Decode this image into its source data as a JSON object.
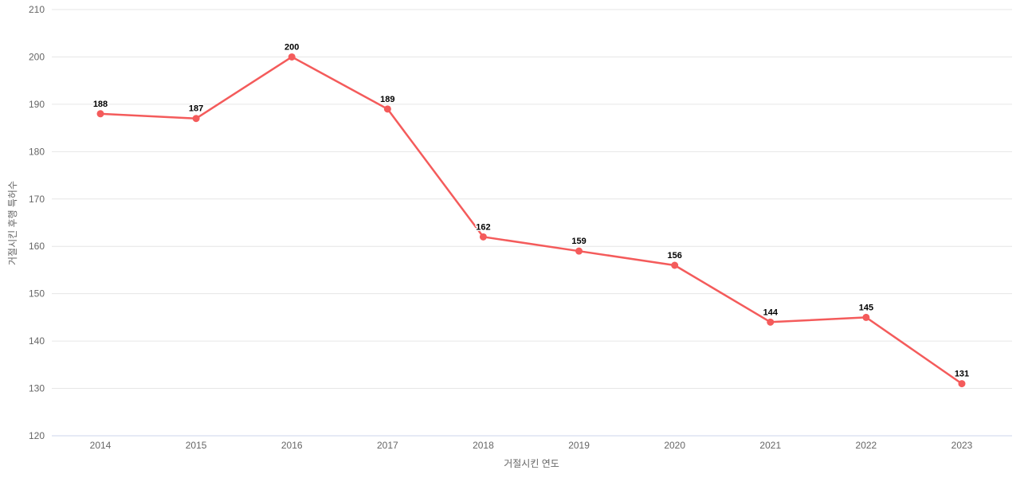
{
  "chart_data": {
    "type": "line",
    "title": "",
    "xlabel": "거절시킨 연도",
    "ylabel": "거절시킨 후행 특허수",
    "categories": [
      "2014",
      "2015",
      "2016",
      "2017",
      "2018",
      "2019",
      "2020",
      "2021",
      "2022",
      "2023"
    ],
    "series": [
      {
        "name": "거절시킨 후행 특허수",
        "values": [
          188,
          187,
          200,
          189,
          162,
          159,
          156,
          144,
          145,
          131
        ]
      }
    ],
    "data_labels": [
      "188",
      "187",
      "200",
      "189",
      "162",
      "159",
      "156",
      "144",
      "145",
      "131"
    ],
    "ylim": [
      120,
      210
    ],
    "y_tick_interval": 10,
    "y_tick_labels": [
      "120",
      "130",
      "140",
      "150",
      "160",
      "170",
      "180",
      "190",
      "200",
      "210"
    ],
    "grid": "horizontal",
    "legend": "none",
    "marker": "circle",
    "colors": {
      "series": "#f45b5b",
      "grid_line": "#e6e6e6",
      "axis_line": "#ccd6eb",
      "tick_label": "#666666",
      "axis_title": "#666666",
      "data_label": "#000000",
      "background": "#ffffff"
    }
  }
}
